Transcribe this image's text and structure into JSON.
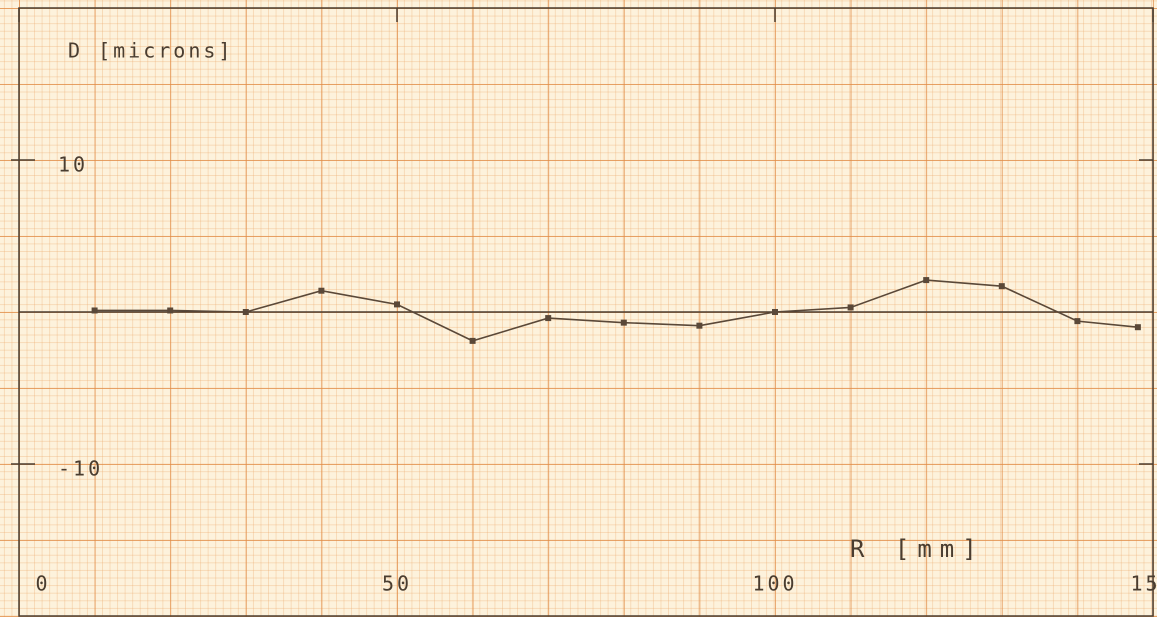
{
  "chart_data": {
    "type": "line",
    "y_label": "D [microns]",
    "x_label": "R [mm]",
    "x": [
      10,
      20,
      30,
      40,
      50,
      60,
      70,
      80,
      90,
      100,
      110,
      120,
      130,
      140,
      148
    ],
    "series": [
      {
        "color": "#5a4838",
        "values": [
          0.1,
          0.1,
          0,
          1.4,
          0.5,
          -1.9,
          -0.4,
          -0.7,
          -0.9,
          0,
          0.3,
          2.1,
          1.7,
          -0.6,
          -1.0
        ]
      }
    ],
    "xlim": [
      0,
      150
    ],
    "ylim": [
      -20,
      20
    ],
    "xticks": [
      0,
      50,
      100,
      150
    ],
    "yticks": [
      -10,
      10
    ],
    "zero_line": true
  }
}
